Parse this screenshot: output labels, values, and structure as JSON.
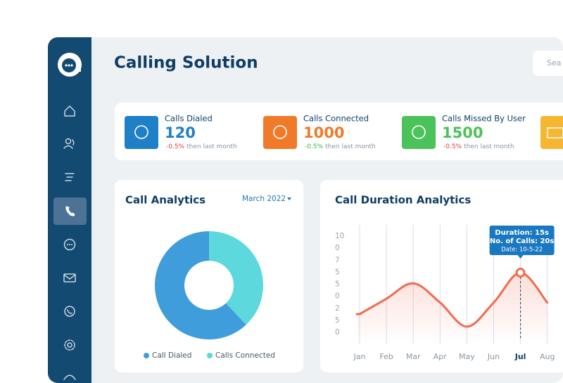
{
  "header": {
    "title": "Calling Solution",
    "search_placeholder": "Sea"
  },
  "stats": [
    {
      "label": "Calls Dialed",
      "value": "120",
      "change": "-0.5%",
      "change_color": "#e23b3b",
      "note": "then last month",
      "color": "#1f80c8"
    },
    {
      "label": "Calls Connected",
      "value": "1000",
      "change": "-0.5%",
      "change_color": "#3cb54a",
      "note": "then last month",
      "color": "#f07a2a"
    },
    {
      "label": "Calls Missed By User",
      "value": "1500",
      "change": "-0.5%",
      "change_color": "#e23b3b",
      "note": "then last month",
      "color": "#4cc25a"
    }
  ],
  "call_analytics": {
    "title": "Call Analytics",
    "period": "March 2022",
    "chart_data": {
      "type": "pie",
      "series": [
        {
          "name": "Call Dialed",
          "color": "#3f9ddb",
          "values": [
            62
          ]
        },
        {
          "name": "Calls Connected",
          "color": "#5dd8dc",
          "values": [
            38
          ]
        }
      ]
    }
  },
  "duration_analytics": {
    "title": "Call Duration Analytics",
    "chart_data": {
      "type": "line",
      "categories": [
        "Jan",
        "Feb",
        "Mar",
        "Apr",
        "May",
        "Jun",
        "Jul",
        "Aug"
      ],
      "highlight_category": 6,
      "y_labels": [
        "10",
        "0",
        "7",
        "5",
        "5",
        "0",
        "2",
        "5",
        "0"
      ],
      "ylim": [
        0,
        100
      ],
      "series": [
        {
          "name": "Duration",
          "color": "#f26b4f",
          "values": [
            19,
            35,
            51,
            31,
            6,
            31,
            62,
            31
          ]
        }
      ],
      "tooltip": [
        "Duration: 15s",
        "No. of Calls: 20s",
        "Date: 10-5-22"
      ]
    }
  }
}
